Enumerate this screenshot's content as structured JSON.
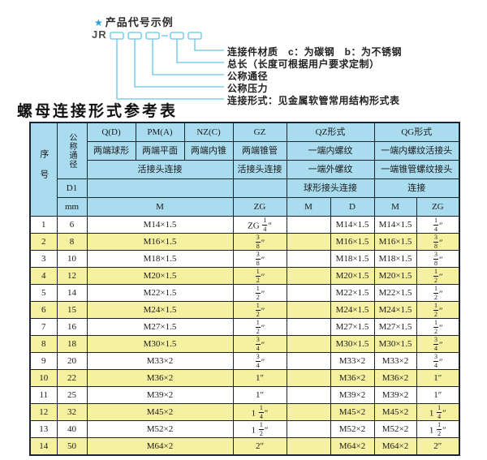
{
  "diagram": {
    "star_icon": "★",
    "title": "产品代号示例",
    "prefix": "JR",
    "dash": "-",
    "labels": [
      "连接件材质　c：为碳钢　b：为不锈钢",
      "总长（长度可根据用户要求定制）",
      "公称通径",
      "公称压力",
      "连接形式：见金属软管常用结构形式表"
    ]
  },
  "table_title": "螺母连接形式参考表",
  "table": {
    "header": {
      "seq": "序号",
      "dn": "公称通径",
      "d1": "D1",
      "mm": "mm",
      "q_d": "Q(D)",
      "pm_a": "PM(A)",
      "nz_c": "NZ(C)",
      "gz": "GZ",
      "qz": "QZ形式",
      "qg": "QG形式",
      "q_desc": "两端球形",
      "pm_desc": "两端平面",
      "nz_desc": "两端内锥",
      "gz_desc": "两端锥管",
      "qz_desc1": "一端内螺纹",
      "qg_desc1": "一端内螺纹活接头",
      "union_conn": "活接头连接",
      "gz_conn": "活接头连接",
      "qz_desc2": "一端外螺纹",
      "qg_desc2": "一端锥管螺纹接头",
      "qz_conn": "球形接头连接",
      "qg_conn": "连接",
      "m1": "M",
      "zg1": "ZG",
      "m2": "M",
      "d2": "D",
      "m3": "M",
      "zg3": "ZG"
    },
    "rows": [
      {
        "seq": "1",
        "dn": "6",
        "m": "M14×1.5",
        "gz_zg": "ZG 1/4″",
        "qz_m": "",
        "qz_d": "M14×1.5",
        "qg_m": "M14×1.5",
        "qg_zg": "1/4″"
      },
      {
        "seq": "2",
        "dn": "8",
        "m": "M16×1.5",
        "gz_zg": "3/8″",
        "qz_m": "",
        "qz_d": "M16×1.5",
        "qg_m": "M16×1.5",
        "qg_zg": "3/8″"
      },
      {
        "seq": "3",
        "dn": "10",
        "m": "M18×1.5",
        "gz_zg": "3/8″",
        "qz_m": "",
        "qz_d": "M18×1.5",
        "qg_m": "M18×1.5",
        "qg_zg": "3/8″"
      },
      {
        "seq": "4",
        "dn": "12",
        "m": "M20×1.5",
        "gz_zg": "1/2″",
        "qz_m": "",
        "qz_d": "M20×1.5",
        "qg_m": "M20×1.5",
        "qg_zg": "1/2″"
      },
      {
        "seq": "5",
        "dn": "14",
        "m": "M22×1.5",
        "gz_zg": "1/2″",
        "qz_m": "",
        "qz_d": "M22×1.5",
        "qg_m": "M22×1.5",
        "qg_zg": "1/2″"
      },
      {
        "seq": "6",
        "dn": "15",
        "m": "M24×1.5",
        "gz_zg": "1/2″",
        "qz_m": "",
        "qz_d": "M24×1.5",
        "qg_m": "M24×1.5",
        "qg_zg": "1/2″"
      },
      {
        "seq": "7",
        "dn": "16",
        "m": "M27×1.5",
        "gz_zg": "1/2″",
        "qz_m": "",
        "qz_d": "M27×1.5",
        "qg_m": "M27×1.5",
        "qg_zg": "1/2″"
      },
      {
        "seq": "8",
        "dn": "18",
        "m": "M30×1.5",
        "gz_zg": "3/4″",
        "qz_m": "",
        "qz_d": "M30×1.5",
        "qg_m": "M30×1.5",
        "qg_zg": "3/4″"
      },
      {
        "seq": "9",
        "dn": "20",
        "m": "M33×2",
        "gz_zg": "3/4″",
        "qz_m": "",
        "qz_d": "M33×2",
        "qg_m": "M33×2",
        "qg_zg": "3/4″"
      },
      {
        "seq": "10",
        "dn": "22",
        "m": "M36×2",
        "gz_zg": "1″",
        "qz_m": "",
        "qz_d": "M36×2",
        "qg_m": "M36×2",
        "qg_zg": "1″"
      },
      {
        "seq": "11",
        "dn": "25",
        "m": "M39×2",
        "gz_zg": "1″",
        "qz_m": "",
        "qz_d": "M39×2",
        "qg_m": "M39×2",
        "qg_zg": "1″"
      },
      {
        "seq": "12",
        "dn": "32",
        "m": "M45×2",
        "gz_zg": "1 1/4″",
        "qz_m": "",
        "qz_d": "M45×2",
        "qg_m": "M45×2",
        "qg_zg": "1 1/4″"
      },
      {
        "seq": "13",
        "dn": "40",
        "m": "M52×2",
        "gz_zg": "1 1/2″",
        "qz_m": "",
        "qz_d": "M52×2",
        "qg_m": "M52×2",
        "qg_zg": "1 1/2″"
      },
      {
        "seq": "14",
        "dn": "50",
        "m": "M64×2",
        "gz_zg": "2″",
        "qz_m": "",
        "qz_d": "M64×2",
        "qg_m": "M64×2",
        "qg_zg": "2″"
      }
    ]
  },
  "colors": {
    "header_bg": "#aadcf0",
    "row_yellow": "#f6f1a0",
    "row_white": "#ffffff",
    "table_border": "#1d2430",
    "leader_line": "#7ecfec",
    "star": "#2b9fd6"
  }
}
